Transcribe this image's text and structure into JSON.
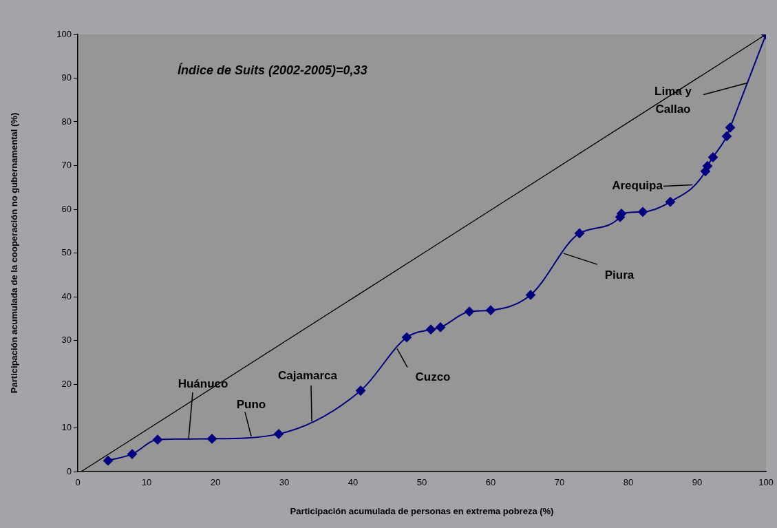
{
  "chart_data": {
    "type": "line",
    "title": "Índice de Suits (2002-2005)=0,33",
    "xlabel": "Participación acumulada de personas en extrema pobreza (%)",
    "ylabel": "Participación acumulada de la cooperación no gubernamental (%)",
    "series": [
      {
        "color": "#000080",
        "marker": "diamond",
        "x": [
          4.4,
          7.9,
          11.6,
          19.5,
          29.2,
          41.1,
          47.8,
          51.3,
          52.7,
          56.9,
          60.0,
          65.8,
          72.9,
          78.8,
          79.0,
          82.1,
          86.1,
          91.2,
          91.5,
          92.3,
          94.3,
          94.8,
          100
        ],
        "values": [
          2.5,
          4.0,
          7.3,
          7.5,
          8.6,
          18.5,
          30.7,
          32.5,
          33.0,
          36.6,
          36.9,
          40.4,
          54.5,
          58.2,
          59.0,
          59.4,
          61.7,
          68.7,
          69.9,
          71.9,
          76.7,
          78.7,
          100
        ]
      },
      {
        "color": "#000000",
        "marker": "none",
        "x": [
          0.5,
          100
        ],
        "values": [
          0,
          100
        ]
      }
    ],
    "annotations": [
      {
        "text": "Huánuco",
        "x": 16.1,
        "y": 7.4
      },
      {
        "text": "Puno",
        "x": 25.2,
        "y": 8.1
      },
      {
        "text": "Cajamarca",
        "x": 34.0,
        "y": 11.5
      },
      {
        "text": "Cuzco",
        "x": 46.4,
        "y": 28.1
      },
      {
        "text": "Piura",
        "x": 70.6,
        "y": 49.9
      },
      {
        "text": "Arequipa",
        "x": 89.3,
        "y": 65.6
      },
      {
        "text": "Lima y Callao",
        "x": 97.3,
        "y": 88.9
      }
    ],
    "xlim": [
      0,
      100
    ],
    "ylim": [
      0,
      100
    ],
    "xticks": [
      0,
      10,
      20,
      30,
      40,
      50,
      60,
      70,
      80,
      90,
      100
    ],
    "yticks": [
      0,
      10,
      20,
      30,
      40,
      50,
      60,
      70,
      80,
      90,
      100
    ],
    "grid": false,
    "legend": false
  }
}
